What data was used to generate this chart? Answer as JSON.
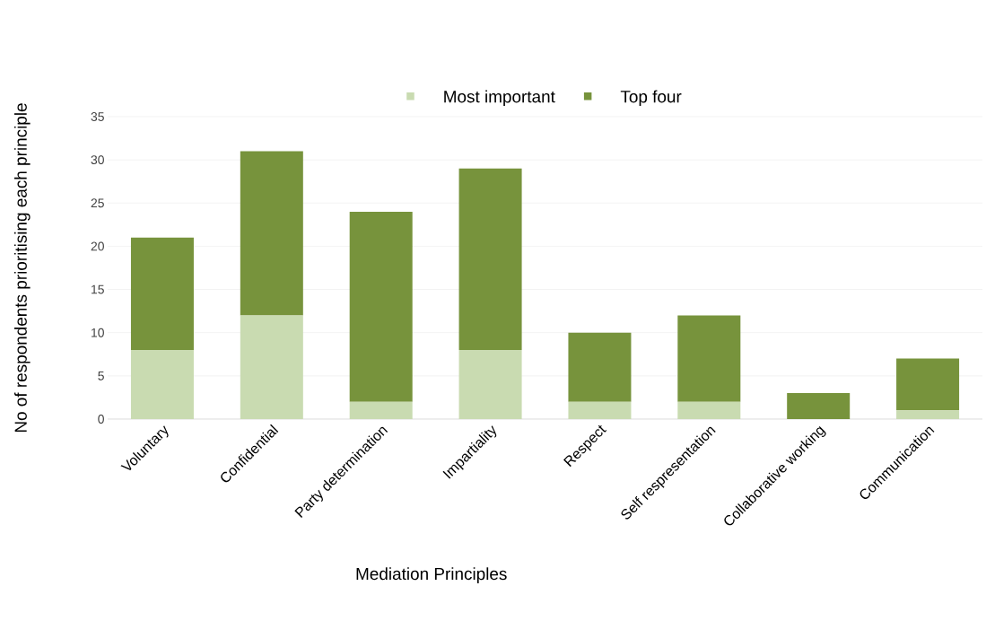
{
  "chart_data": {
    "type": "bar",
    "stacked": true,
    "xlabel": "Mediation Principles",
    "ylabel": "No of respondents prioritising each principle",
    "categories": [
      "Voluntary",
      "Confidential",
      "Party determination",
      "Impartiality",
      "Respect",
      "Self respresentation",
      "Collaborative working",
      "Communication"
    ],
    "series": [
      {
        "name": "Most important",
        "color": "#c9dbb1",
        "values": [
          8,
          12,
          2,
          8,
          2,
          2,
          0,
          1
        ]
      },
      {
        "name": "Top four",
        "color": "#77933c",
        "values": [
          13,
          19,
          22,
          21,
          8,
          10,
          3,
          6
        ]
      }
    ],
    "ylim": [
      0,
      35
    ],
    "yticks": [
      0,
      5,
      10,
      15,
      20,
      25,
      30,
      35
    ],
    "grid": "y",
    "legend": "top"
  }
}
